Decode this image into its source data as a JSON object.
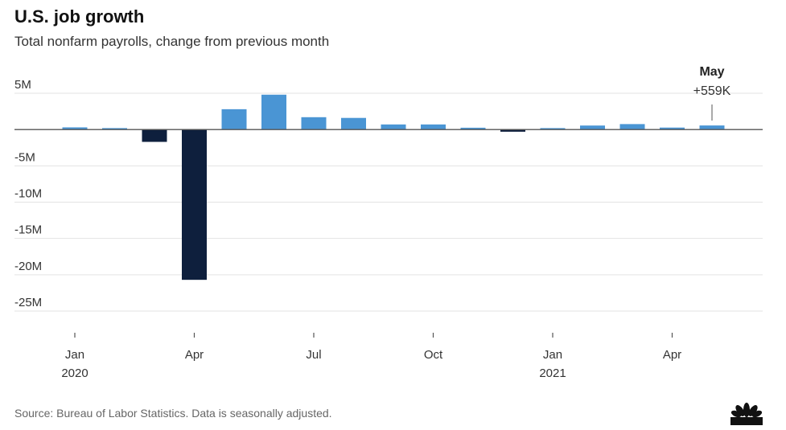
{
  "header": {
    "title": "U.S. job growth",
    "subtitle": "Total nonfarm payrolls, change from previous month"
  },
  "footer": {
    "source": "Source: Bureau of Labor Statistics. Data is seasonally adjusted.",
    "logo_text": "CNBC"
  },
  "colors": {
    "positive": "#4a95d4",
    "negative": "#0e1f3d",
    "gridline": "#e3e3e3",
    "zero_line": "#555555"
  },
  "chart_data": {
    "type": "bar",
    "title": "U.S. job growth",
    "subtitle": "Total nonfarm payrolls, change from previous month",
    "xlabel": "",
    "ylabel": "",
    "ylim": [
      -25000000,
      5000000
    ],
    "y_ticks": [
      {
        "value": 5000000,
        "label": "5M"
      },
      {
        "value": 0,
        "label": ""
      },
      {
        "value": -5000000,
        "label": "-5M"
      },
      {
        "value": -10000000,
        "label": "-10M"
      },
      {
        "value": -15000000,
        "label": "-15M"
      },
      {
        "value": -20000000,
        "label": "-20M"
      },
      {
        "value": -25000000,
        "label": "-25M"
      }
    ],
    "categories": [
      "2020-01",
      "2020-02",
      "2020-03",
      "2020-04",
      "2020-05",
      "2020-06",
      "2020-07",
      "2020-08",
      "2020-09",
      "2020-10",
      "2020-11",
      "2020-12",
      "2021-01",
      "2021-02",
      "2021-03",
      "2021-04",
      "2021-05"
    ],
    "values": [
      300000,
      200000,
      -1700000,
      -20700000,
      2800000,
      4800000,
      1700000,
      1600000,
      700000,
      700000,
      250000,
      -300000,
      200000,
      550000,
      750000,
      270000,
      559000
    ],
    "x_tick_labels": [
      {
        "index": 0,
        "label": "Jan",
        "sublabel": "2020"
      },
      {
        "index": 3,
        "label": "Apr",
        "sublabel": ""
      },
      {
        "index": 6,
        "label": "Jul",
        "sublabel": ""
      },
      {
        "index": 9,
        "label": "Oct",
        "sublabel": ""
      },
      {
        "index": 12,
        "label": "Jan",
        "sublabel": "2021"
      },
      {
        "index": 15,
        "label": "Apr",
        "sublabel": ""
      }
    ],
    "annotation": {
      "index": 16,
      "label": "May",
      "value_label": "+559K"
    },
    "grid": true,
    "legend": "none"
  }
}
